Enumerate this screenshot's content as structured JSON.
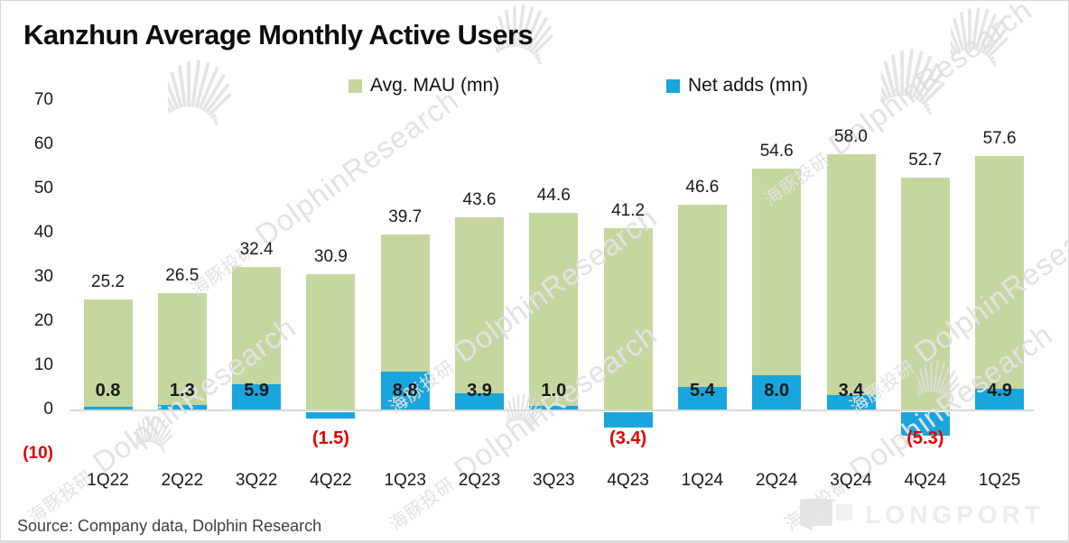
{
  "title": "Kanzhun Average Monthly Active Users",
  "source": "Source: Company data, Dolphin Research",
  "watermark": {
    "cn": "海豚投研",
    "en": "DolphinResearch",
    "brand": "LONGPORT"
  },
  "colors": {
    "mau_green": "#c5d69f",
    "net_blue": "#18a6dc",
    "negative_red": "#e00000",
    "axis_gray": "#d9d9d9"
  },
  "chart_data": {
    "type": "bar",
    "title": "Kanzhun Average Monthly Active Users",
    "categories": [
      "1Q22",
      "2Q22",
      "3Q22",
      "4Q22",
      "1Q23",
      "2Q23",
      "3Q23",
      "4Q23",
      "1Q24",
      "2Q24",
      "3Q24",
      "4Q24",
      "1Q25"
    ],
    "series": [
      {
        "name": "Avg. MAU (mn)",
        "color": "#c5d69f",
        "values": [
          25.2,
          26.5,
          32.4,
          30.9,
          39.7,
          43.6,
          44.6,
          41.2,
          46.6,
          54.6,
          58.0,
          52.7,
          57.6
        ],
        "labels": [
          "25.2",
          "26.5",
          "32.4",
          "30.9",
          "39.7",
          "43.6",
          "44.6",
          "41.2",
          "46.6",
          "54.6",
          "58.0",
          "52.7",
          "57.6"
        ]
      },
      {
        "name": "Net adds (mn)",
        "color": "#18a6dc",
        "values": [
          0.8,
          1.3,
          5.9,
          -1.5,
          8.8,
          3.9,
          1.0,
          -3.4,
          5.4,
          8.0,
          3.4,
          -5.3,
          4.9
        ],
        "labels": [
          "0.8",
          "1.3",
          "5.9",
          "(1.5)",
          "8.8",
          "3.9",
          "1.0",
          "(3.4)",
          "5.4",
          "8.0",
          "3.4",
          "(5.3)",
          "4.9"
        ]
      }
    ],
    "yticks": [
      70,
      60,
      50,
      40,
      30,
      20,
      10,
      0
    ],
    "negative_tick_label": "(10)",
    "negative_tick_value": -10,
    "ylim": [
      -10,
      70
    ],
    "grid": false,
    "legend_position": "top",
    "negative_label_color": "#e00000"
  }
}
